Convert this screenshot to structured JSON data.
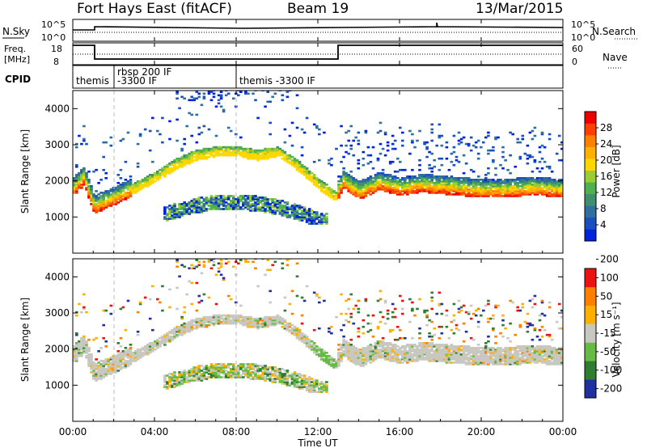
{
  "header": {
    "title": "Fort Hays East (fitACF)",
    "beam": "Beam 19",
    "date": "13/Mar/2015"
  },
  "top_panels": {
    "nsky_label": "N.Sky",
    "nsearch_label": "N.Search",
    "noise_ticks": [
      "10^5",
      "10^0"
    ],
    "freq_label_1": "Freq.",
    "freq_label_2": "[MHz]",
    "freq_ticks": [
      "18",
      "8"
    ],
    "nave_label": "Nave",
    "nave_ticks": [
      "60",
      "0"
    ],
    "cpid_label": "CPID",
    "cpid_segments": [
      {
        "line1": "themis",
        "line2": ""
      },
      {
        "line1": "rbsp 200 IF",
        "line2": "-3300 IF"
      },
      {
        "line1": "themis -3300 IF",
        "line2": ""
      }
    ]
  },
  "x_axis": {
    "label": "Time UT",
    "ticks": [
      "00:00",
      "04:00",
      "08:00",
      "12:00",
      "16:00",
      "20:00",
      "00:00"
    ]
  },
  "power_panel": {
    "ylabel": "Slant Range [km]",
    "yticks": [
      "4000",
      "3000",
      "2000",
      "1000"
    ],
    "colorbar_label": "Power [dB]",
    "colorbar_ticks": [
      "28",
      "24",
      "20",
      "16",
      "12",
      "8",
      "4"
    ],
    "colors": [
      "#0022dd",
      "#1a4fbf",
      "#2f6f9f",
      "#3f8f6f",
      "#4fb04f",
      "#9acd32",
      "#ffd700",
      "#ffb000",
      "#ff7f00",
      "#ff4000",
      "#ee0000"
    ]
  },
  "velocity_panel": {
    "ylabel": "Slant Range [km]",
    "yticks": [
      "4000",
      "3000",
      "2000",
      "1000"
    ],
    "colorbar_label": "Velocity [m s⁻¹]",
    "colorbar_ticks": [
      "200",
      "100",
      "50",
      "15",
      "-15",
      "-50",
      "-100",
      "-200"
    ],
    "colors": [
      "#2030a0",
      "#2e7d32",
      "#66bb44",
      "#c8c8c0",
      "#ffb000",
      "#ff7f00",
      "#ee1111"
    ]
  },
  "chart_data": {
    "type": "heatmap",
    "title": "Fort Hays East (fitACF)",
    "subtitle": "Beam 19 13/Mar/2015",
    "xlabel": "Time UT",
    "ylabel": "Slant Range [km]",
    "xlim": [
      "00:00",
      "24:00"
    ],
    "ylim": [
      0,
      4500
    ],
    "echo_bands": [
      {
        "name": "main",
        "times_h": [
          0,
          0.5,
          1,
          2,
          3,
          4,
          5,
          6,
          7,
          8,
          9,
          10,
          11,
          12,
          12.8,
          13.2,
          14,
          15,
          16,
          17,
          18,
          19,
          20,
          21,
          22,
          23,
          24
        ],
        "range_km": [
          1800,
          2100,
          1300,
          1550,
          1800,
          2100,
          2450,
          2700,
          2800,
          2800,
          2700,
          2800,
          2400,
          1900,
          1550,
          2000,
          1700,
          1950,
          1800,
          1900,
          1850,
          1800,
          1750,
          1750,
          1800,
          1800,
          1750
        ]
      },
      {
        "name": "lower",
        "times_h": [
          4,
          5,
          6,
          7,
          8,
          9,
          10,
          11,
          12
        ],
        "range_km": [
          1000,
          1150,
          1300,
          1400,
          1400,
          1350,
          1250,
          1100,
          900
        ]
      }
    ],
    "power_scale_dB": [
      4,
      28
    ],
    "velocity_scale_ms": [
      -200,
      200
    ]
  }
}
